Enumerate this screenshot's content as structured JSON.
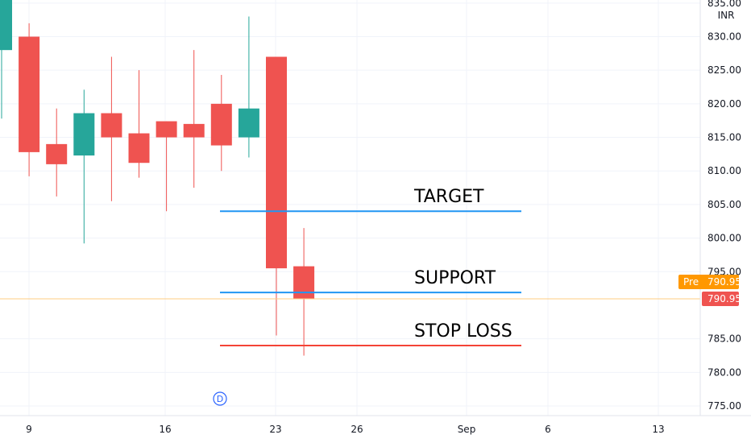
{
  "chart_data": {
    "type": "candlestick",
    "currency": "INR",
    "y_ticks": [
      "835.00",
      "830.00",
      "825.00",
      "820.00",
      "815.00",
      "810.00",
      "805.00",
      "800.00",
      "795.00",
      "785.00",
      "780.00",
      "775.00"
    ],
    "ylim": [
      774.5,
      836
    ],
    "x_ticks": [
      "9",
      "16",
      "23",
      "26",
      "Sep",
      "6",
      "13"
    ],
    "candles": [
      {
        "open": 828.0,
        "close": 836.0,
        "high": 836.0,
        "low": 817.8
      },
      {
        "open": 830.0,
        "close": 812.8,
        "high": 832.0,
        "low": 809.2
      },
      {
        "open": 814.0,
        "close": 811.0,
        "high": 819.3,
        "low": 806.2
      },
      {
        "open": 812.3,
        "close": 818.6,
        "high": 822.1,
        "low": 799.2
      },
      {
        "open": 818.6,
        "close": 815.0,
        "high": 827.0,
        "low": 805.5
      },
      {
        "open": 815.6,
        "close": 811.2,
        "high": 825.0,
        "low": 809.0
      },
      {
        "open": 817.4,
        "close": 815.0,
        "high": 817.4,
        "low": 804.0
      },
      {
        "open": 817.0,
        "close": 815.0,
        "high": 828.0,
        "low": 807.5
      },
      {
        "open": 820.0,
        "close": 813.8,
        "high": 824.3,
        "low": 810.0
      },
      {
        "open": 815.0,
        "close": 819.3,
        "high": 833.0,
        "low": 812.0
      },
      {
        "open": 827.0,
        "close": 795.5,
        "high": 827.0,
        "low": 785.5
      },
      {
        "open": 795.8,
        "close": 790.95,
        "high": 801.5,
        "low": 782.5
      }
    ],
    "levels": [
      {
        "label": "TARGET",
        "value": 804.0,
        "color": "#2196f3"
      },
      {
        "label": "SUPPORT",
        "value": 791.9,
        "color": "#2196f3"
      },
      {
        "label": "STOP LOSS",
        "value": 784.0,
        "color": "#f44336"
      }
    ],
    "last_price": 790.95,
    "last_price_label": "790.95",
    "pre_label": "Pre",
    "pre_price_label": "790.95",
    "dividend_marker": "D",
    "up_color": "#26a69a",
    "down_color": "#ef5350",
    "pre_color": "#ff9800"
  }
}
